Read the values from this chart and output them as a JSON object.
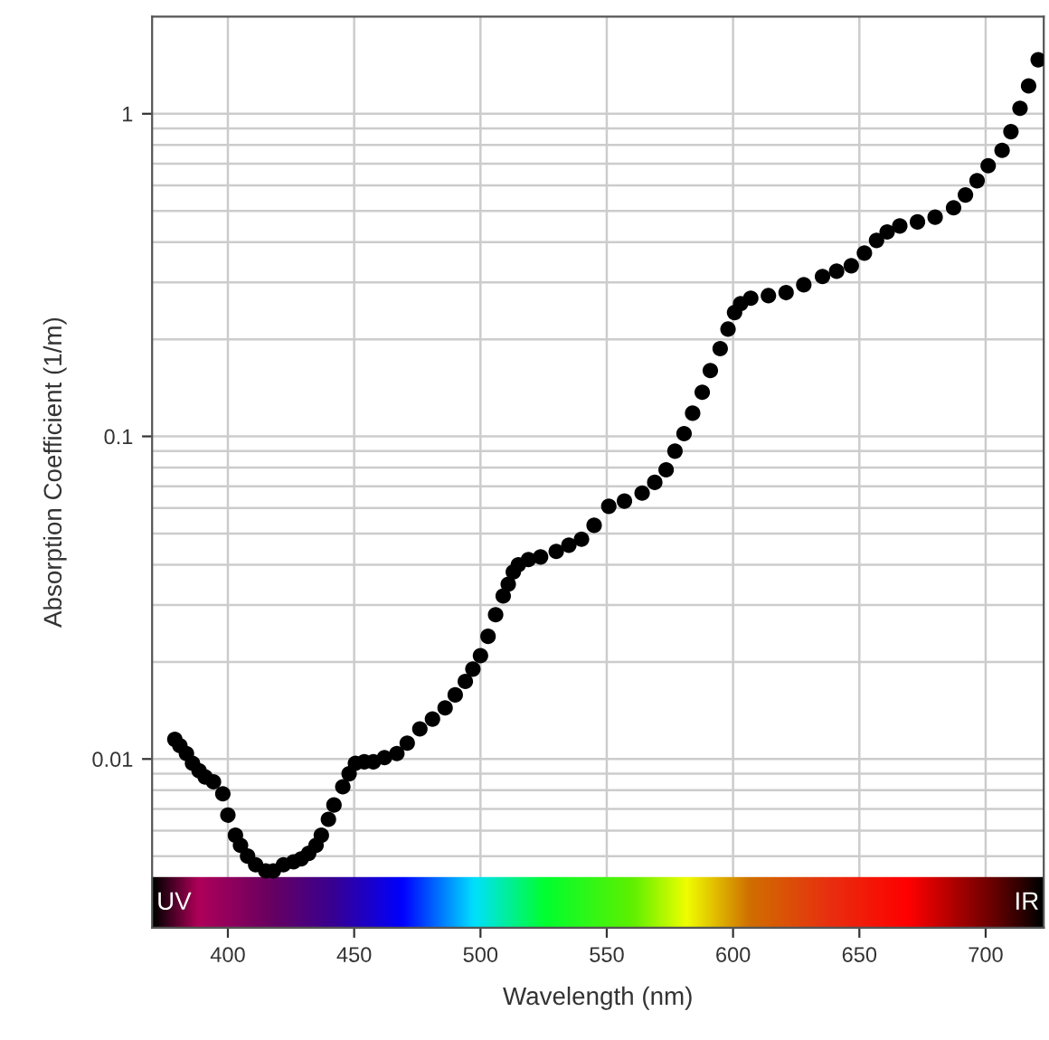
{
  "chart_data": {
    "type": "scatter",
    "xlabel": "Wavelength (nm)",
    "ylabel": "Absorption Coefficient (1/m)",
    "annotations": [
      "UV",
      "IR"
    ],
    "x": [
      379,
      381,
      383.6,
      386,
      388.6,
      391,
      394.3,
      398,
      400,
      403,
      405,
      407.8,
      411,
      415,
      418,
      422,
      426,
      429,
      432,
      434.9,
      437,
      439.8,
      442,
      445.5,
      448,
      450.5,
      454,
      457.6,
      462,
      466.9,
      471,
      476,
      481,
      486,
      490,
      494,
      497,
      500,
      503,
      506,
      509,
      511,
      513,
      515,
      519,
      523.8,
      530,
      535,
      540,
      545,
      550.8,
      557,
      564,
      569,
      573.5,
      577,
      580.6,
      584,
      587.8,
      591,
      594.9,
      598,
      600.6,
      603,
      607,
      614,
      621,
      628,
      635.4,
      641,
      646.8,
      652,
      656.8,
      661,
      666,
      673,
      680,
      687.3,
      692,
      696.6,
      701,
      706.5,
      710,
      713.6,
      717,
      720.8
    ],
    "values": [
      0.0115,
      0.011,
      0.0104,
      0.0097,
      0.0092,
      0.0088,
      0.0085,
      0.0078,
      0.0067,
      0.0058,
      0.0054,
      0.005,
      0.0047,
      0.0045,
      0.0045,
      0.0047,
      0.0048,
      0.0049,
      0.0051,
      0.0054,
      0.0058,
      0.0065,
      0.0072,
      0.0082,
      0.009,
      0.0097,
      0.0098,
      0.0098,
      0.0101,
      0.0104,
      0.0112,
      0.0124,
      0.0133,
      0.0144,
      0.0158,
      0.0174,
      0.019,
      0.0209,
      0.024,
      0.028,
      0.032,
      0.0348,
      0.038,
      0.04,
      0.0415,
      0.0423,
      0.044,
      0.046,
      0.048,
      0.053,
      0.0607,
      0.063,
      0.0667,
      0.072,
      0.0788,
      0.09,
      0.102,
      0.118,
      0.137,
      0.16,
      0.187,
      0.215,
      0.242,
      0.258,
      0.268,
      0.273,
      0.279,
      0.295,
      0.313,
      0.325,
      0.338,
      0.37,
      0.405,
      0.43,
      0.449,
      0.462,
      0.478,
      0.511,
      0.56,
      0.62,
      0.69,
      0.77,
      0.88,
      1.04,
      1.22,
      1.47
    ],
    "color": "#000000",
    "marker": "circle",
    "log": "y",
    "grid": true,
    "xlim": [
      370,
      723
    ],
    "ylim": [
      0.003,
      2
    ],
    "xticks": [
      400,
      450,
      500,
      550,
      600,
      650,
      700
    ],
    "yticks": [
      {
        "value": 0.003,
        "label": null
      },
      {
        "value": 0.005,
        "label": null
      },
      {
        "value": 0.006,
        "label": null
      },
      {
        "value": 0.007,
        "label": null
      },
      {
        "value": 0.008,
        "label": null
      },
      {
        "value": 0.009,
        "label": null
      },
      0.01,
      {
        "value": 0.02,
        "label": null
      },
      {
        "value": 0.03,
        "label": null
      },
      {
        "value": 0.04,
        "label": null
      },
      {
        "value": 0.05,
        "label": null
      },
      {
        "value": 0.06,
        "label": null
      },
      {
        "value": 0.07,
        "label": null
      },
      {
        "value": 0.08,
        "label": null
      },
      {
        "value": 0.09,
        "label": null
      },
      0.1,
      {
        "value": 0.2,
        "label": null
      },
      {
        "value": 0.3,
        "label": null
      },
      {
        "value": 0.4,
        "label": null
      },
      {
        "value": 0.5,
        "label": null
      },
      {
        "value": 0.6,
        "label": null
      },
      {
        "value": 0.7,
        "label": null
      },
      {
        "value": 0.8,
        "label": null
      },
      {
        "value": 0.9,
        "label": null
      },
      1
    ]
  }
}
